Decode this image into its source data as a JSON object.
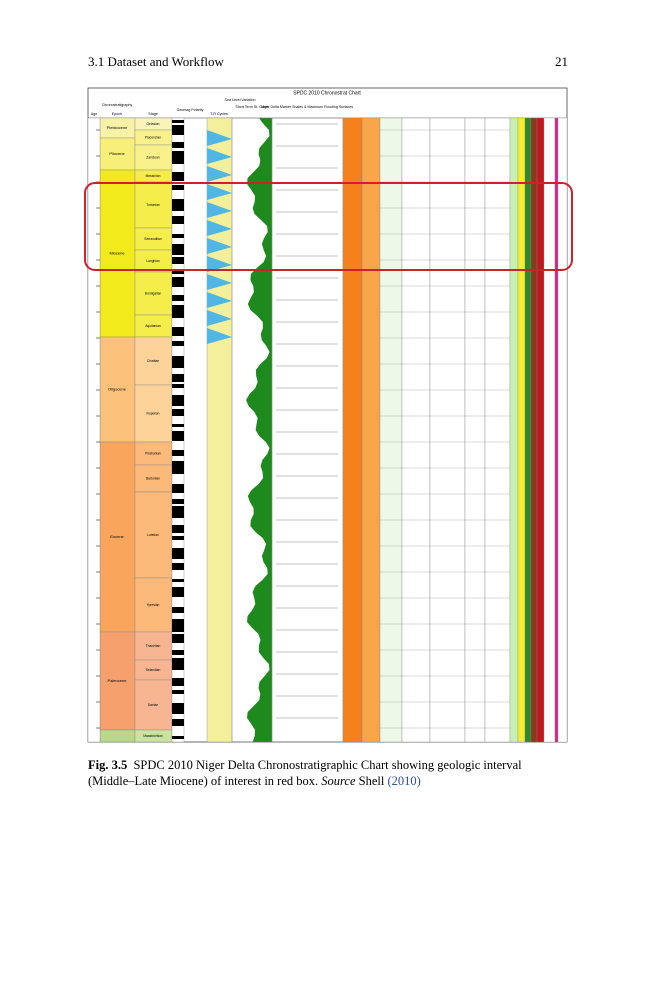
{
  "header": {
    "section": "3.1 Dataset and Workflow",
    "page_number": "21"
  },
  "figure": {
    "title": "SPDC 2010 Chronostrat Chart",
    "column_headers": [
      "Age",
      "Chronostratigraphy",
      "Epoch",
      "Stage",
      "Geomag Polarity",
      "Sea Level Variation",
      "T-R Cycles",
      "Short Term SL Curve",
      "Niger Delta Marker Shales & Maximum Flooding Surfaces"
    ],
    "epochs": [
      "Pleistocene",
      "Pliocene",
      "Miocene",
      "Oligocene",
      "Eocene",
      "Paleocene"
    ],
    "stages": [
      "Gelasian",
      "Piacenzian",
      "Zanclean",
      "Messinian",
      "Tortonian",
      "Serravallian",
      "Langhian",
      "Burdigalian",
      "Aquitanian",
      "Chattian",
      "Rupelian",
      "Priabonian",
      "Bartonian",
      "Lutetian",
      "Ypresian",
      "Thanetian",
      "Selandian",
      "Danian",
      "Maastrichtian"
    ]
  },
  "caption": {
    "label": "Fig. 3.5",
    "text": "SPDC 2010 Niger Delta Chronostratigraphic Chart showing geologic interval (Middle–Late Miocene) of interest in red box.",
    "source_word": "Source",
    "source_name": "Shell",
    "source_year": "(2010)"
  }
}
